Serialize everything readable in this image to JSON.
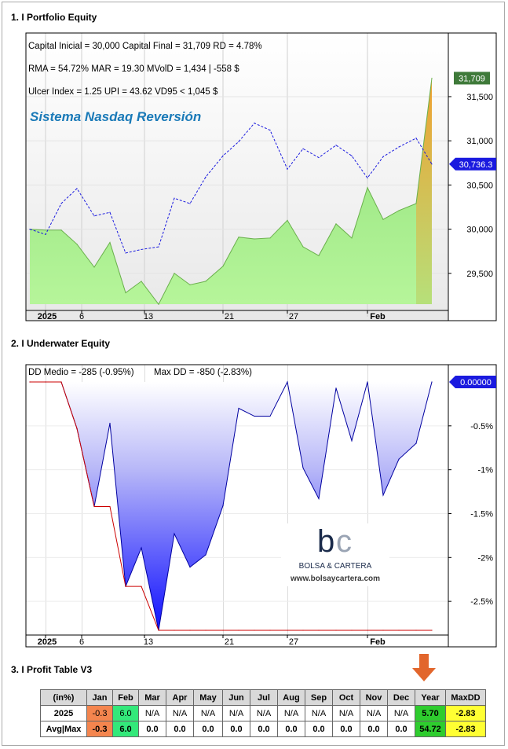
{
  "sections": {
    "s1": "1. I Portfolio Equity",
    "s2": "2. I Underwater Equity",
    "s3": "3. I Profit Table V3"
  },
  "chart_data": [
    {
      "type": "area",
      "subtitle": "Sistema Nasdaq Reversión",
      "stats": [
        "Capital Inicial = 30,000  Capital Final = 31,709   RD = 4.78%",
        "RMA = 54.72%   MAR = 19.30   MVolD = 1,434 | -558 $",
        "Ulcer Index = 1.25   UPI = 43.62   VD95 < 1,045 $"
      ],
      "x_ticks": [
        "2025",
        "6",
        "13",
        "21",
        "27",
        "Feb"
      ],
      "y_ticks": [
        "29,500",
        "30,000",
        "30,500",
        "31,000",
        "31,500"
      ],
      "ylim": [
        29080,
        32220
      ],
      "last_value_label": "31,709",
      "benchmark_label": "30,736.3",
      "accent_colors": {
        "equity_fill": "#a8ee8a",
        "equity_line": "#6ab04c",
        "benchmark": "#1a1adf",
        "last_badge": "#3f7a3a"
      },
      "series": [
        {
          "values": [
            30000,
            29990,
            29990,
            29830,
            29570,
            29850,
            29280,
            29410,
            29150,
            29500,
            29370,
            29410,
            29580,
            29910,
            29890,
            29900,
            30100,
            29800,
            29700,
            30060,
            29900,
            30470,
            30110,
            30210,
            30290,
            31709
          ]
        },
        {
          "values": [
            30000,
            29940,
            30290,
            30460,
            30150,
            30190,
            29730,
            29770,
            29800,
            30350,
            30290,
            30590,
            30830,
            30990,
            31200,
            31120,
            30680,
            30910,
            30810,
            30950,
            30830,
            30580,
            30820,
            30930,
            31030,
            30736.3
          ]
        }
      ]
    },
    {
      "type": "area",
      "stats": [
        "DD Medio = -285 (-0.95%)",
        "Max DD = -850 (-2.83%)"
      ],
      "x_ticks": [
        "2025",
        "6",
        "13",
        "21",
        "27",
        "Feb"
      ],
      "y_ticks": [
        "-2.5%",
        "-2%",
        "-1.5%",
        "-1%",
        "-0.5%"
      ],
      "ylim": [
        -2.9,
        0.1
      ],
      "last_value_label": "0.00000",
      "accent_colors": {
        "dd_line": "#0000a0",
        "dd_fill_deep": "#1010ff",
        "max_dd_line": "#cc0000"
      },
      "series": [
        {
          "values": [
            0,
            0,
            0,
            -0.53,
            -1.42,
            -0.47,
            -2.33,
            -1.89,
            -2.83,
            -1.73,
            -2.11,
            -1.97,
            -1.41,
            -0.3,
            -0.39,
            -0.39,
            0,
            -0.98,
            -1.33,
            -0.07,
            -0.67,
            0,
            -1.29,
            -0.88,
            -0.7,
            0
          ]
        },
        {
          "values": [
            0,
            0,
            0,
            -0.53,
            -1.42,
            -1.42,
            -2.33,
            -2.33,
            -2.83,
            -2.83,
            -2.83,
            -2.83,
            -2.83,
            -2.83,
            -2.83,
            -2.83,
            -2.83,
            -2.83,
            -2.83,
            -2.83,
            -2.83,
            -2.83,
            -2.83,
            -2.83,
            -2.83,
            -2.83
          ]
        }
      ]
    },
    {
      "type": "table",
      "columns": [
        "(in%)",
        "Jan",
        "Feb",
        "Mar",
        "Apr",
        "May",
        "Jun",
        "Jul",
        "Aug",
        "Sep",
        "Oct",
        "Nov",
        "Dec",
        "Year",
        "MaxDD"
      ],
      "rows": [
        {
          "label": "2025",
          "cells": [
            "-0.3",
            "6.0",
            "N/A",
            "N/A",
            "N/A",
            "N/A",
            "N/A",
            "N/A",
            "N/A",
            "N/A",
            "N/A",
            "N/A",
            "5.70",
            "-2.83"
          ]
        },
        {
          "label": "Avg|Max",
          "cells": [
            "-0.3",
            "6.0",
            "0.0",
            "0.0",
            "0.0",
            "0.0",
            "0.0",
            "0.0",
            "0.0",
            "0.0",
            "0.0",
            "0.0",
            "54.72",
            "-2.83"
          ]
        }
      ],
      "cell_colors": {
        "negative": "#f4854e",
        "positive": "#33e87a",
        "year": "#2ecc2e",
        "maxdd": "#ffff33"
      }
    }
  ],
  "watermark": {
    "brand": "BOLSA & CARTERA",
    "url": "www.bolsaycartera.com",
    "logo_text": "bc"
  }
}
